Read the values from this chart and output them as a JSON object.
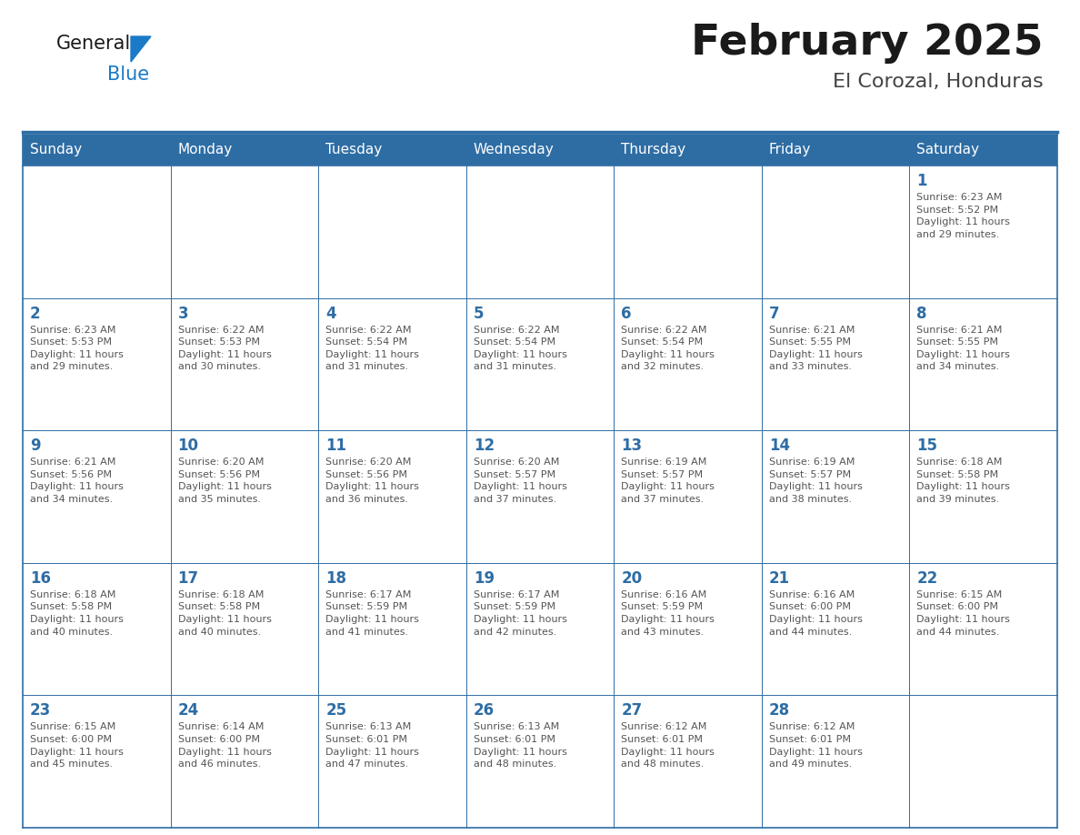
{
  "title": "February 2025",
  "subtitle": "El Corozal, Honduras",
  "days_of_week": [
    "Sunday",
    "Monday",
    "Tuesday",
    "Wednesday",
    "Thursday",
    "Friday",
    "Saturday"
  ],
  "header_bg": "#2E6DA4",
  "header_text": "#FFFFFF",
  "cell_bg": "#FFFFFF",
  "border_color": "#2E6DA4",
  "day_number_color": "#2E6DA4",
  "info_text_color": "#555555",
  "title_color": "#1a1a1a",
  "subtitle_color": "#444444",
  "logo_general_color": "#1a1a1a",
  "logo_blue_color": "#1a7ac7",
  "weeks": [
    [
      {
        "day": null,
        "info": ""
      },
      {
        "day": null,
        "info": ""
      },
      {
        "day": null,
        "info": ""
      },
      {
        "day": null,
        "info": ""
      },
      {
        "day": null,
        "info": ""
      },
      {
        "day": null,
        "info": ""
      },
      {
        "day": 1,
        "info": "Sunrise: 6:23 AM\nSunset: 5:52 PM\nDaylight: 11 hours\nand 29 minutes."
      }
    ],
    [
      {
        "day": 2,
        "info": "Sunrise: 6:23 AM\nSunset: 5:53 PM\nDaylight: 11 hours\nand 29 minutes."
      },
      {
        "day": 3,
        "info": "Sunrise: 6:22 AM\nSunset: 5:53 PM\nDaylight: 11 hours\nand 30 minutes."
      },
      {
        "day": 4,
        "info": "Sunrise: 6:22 AM\nSunset: 5:54 PM\nDaylight: 11 hours\nand 31 minutes."
      },
      {
        "day": 5,
        "info": "Sunrise: 6:22 AM\nSunset: 5:54 PM\nDaylight: 11 hours\nand 31 minutes."
      },
      {
        "day": 6,
        "info": "Sunrise: 6:22 AM\nSunset: 5:54 PM\nDaylight: 11 hours\nand 32 minutes."
      },
      {
        "day": 7,
        "info": "Sunrise: 6:21 AM\nSunset: 5:55 PM\nDaylight: 11 hours\nand 33 minutes."
      },
      {
        "day": 8,
        "info": "Sunrise: 6:21 AM\nSunset: 5:55 PM\nDaylight: 11 hours\nand 34 minutes."
      }
    ],
    [
      {
        "day": 9,
        "info": "Sunrise: 6:21 AM\nSunset: 5:56 PM\nDaylight: 11 hours\nand 34 minutes."
      },
      {
        "day": 10,
        "info": "Sunrise: 6:20 AM\nSunset: 5:56 PM\nDaylight: 11 hours\nand 35 minutes."
      },
      {
        "day": 11,
        "info": "Sunrise: 6:20 AM\nSunset: 5:56 PM\nDaylight: 11 hours\nand 36 minutes."
      },
      {
        "day": 12,
        "info": "Sunrise: 6:20 AM\nSunset: 5:57 PM\nDaylight: 11 hours\nand 37 minutes."
      },
      {
        "day": 13,
        "info": "Sunrise: 6:19 AM\nSunset: 5:57 PM\nDaylight: 11 hours\nand 37 minutes."
      },
      {
        "day": 14,
        "info": "Sunrise: 6:19 AM\nSunset: 5:57 PM\nDaylight: 11 hours\nand 38 minutes."
      },
      {
        "day": 15,
        "info": "Sunrise: 6:18 AM\nSunset: 5:58 PM\nDaylight: 11 hours\nand 39 minutes."
      }
    ],
    [
      {
        "day": 16,
        "info": "Sunrise: 6:18 AM\nSunset: 5:58 PM\nDaylight: 11 hours\nand 40 minutes."
      },
      {
        "day": 17,
        "info": "Sunrise: 6:18 AM\nSunset: 5:58 PM\nDaylight: 11 hours\nand 40 minutes."
      },
      {
        "day": 18,
        "info": "Sunrise: 6:17 AM\nSunset: 5:59 PM\nDaylight: 11 hours\nand 41 minutes."
      },
      {
        "day": 19,
        "info": "Sunrise: 6:17 AM\nSunset: 5:59 PM\nDaylight: 11 hours\nand 42 minutes."
      },
      {
        "day": 20,
        "info": "Sunrise: 6:16 AM\nSunset: 5:59 PM\nDaylight: 11 hours\nand 43 minutes."
      },
      {
        "day": 21,
        "info": "Sunrise: 6:16 AM\nSunset: 6:00 PM\nDaylight: 11 hours\nand 44 minutes."
      },
      {
        "day": 22,
        "info": "Sunrise: 6:15 AM\nSunset: 6:00 PM\nDaylight: 11 hours\nand 44 minutes."
      }
    ],
    [
      {
        "day": 23,
        "info": "Sunrise: 6:15 AM\nSunset: 6:00 PM\nDaylight: 11 hours\nand 45 minutes."
      },
      {
        "day": 24,
        "info": "Sunrise: 6:14 AM\nSunset: 6:00 PM\nDaylight: 11 hours\nand 46 minutes."
      },
      {
        "day": 25,
        "info": "Sunrise: 6:13 AM\nSunset: 6:01 PM\nDaylight: 11 hours\nand 47 minutes."
      },
      {
        "day": 26,
        "info": "Sunrise: 6:13 AM\nSunset: 6:01 PM\nDaylight: 11 hours\nand 48 minutes."
      },
      {
        "day": 27,
        "info": "Sunrise: 6:12 AM\nSunset: 6:01 PM\nDaylight: 11 hours\nand 48 minutes."
      },
      {
        "day": 28,
        "info": "Sunrise: 6:12 AM\nSunset: 6:01 PM\nDaylight: 11 hours\nand 49 minutes."
      },
      {
        "day": null,
        "info": ""
      }
    ]
  ]
}
